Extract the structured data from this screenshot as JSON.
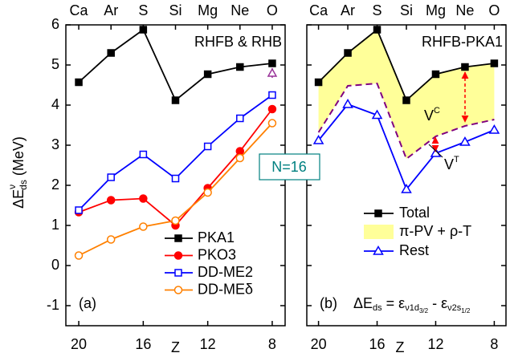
{
  "chart_data": [
    {
      "type": "line",
      "annotation": "RHFB & RHB",
      "panel_label": "(a)",
      "x_label": "Z",
      "y_label": {
        "main": "ΔE",
        "sup": "ν",
        "sub": "ds",
        "unit": "(MeV)"
      },
      "x": [
        20,
        18,
        16,
        14,
        12,
        10,
        8
      ],
      "xlim": [
        20.8,
        7.2
      ],
      "ylim": [
        -1.5,
        6
      ],
      "xticks": [
        20,
        16,
        12,
        8
      ],
      "yticks": [
        -1,
        0,
        1,
        2,
        3,
        4,
        5,
        6
      ],
      "top_ticks": [
        {
          "value": 20,
          "label": "Ca"
        },
        {
          "value": 18,
          "label": "Ar"
        },
        {
          "value": 16,
          "label": "S"
        },
        {
          "value": 14,
          "label": "Si"
        },
        {
          "value": 12,
          "label": "Mg"
        },
        {
          "value": 10,
          "label": "Ne"
        },
        {
          "value": 8,
          "label": "O"
        }
      ],
      "legend": "lower right",
      "series": [
        {
          "name": "PKA1",
          "color": "#000000",
          "marker": "square",
          "filled": true,
          "values": [
            4.57,
            5.3,
            5.88,
            4.12,
            4.77,
            4.95,
            5.04
          ]
        },
        {
          "name": "PKO3",
          "color": "#ff0000",
          "marker": "circle",
          "filled": true,
          "values": [
            1.33,
            1.63,
            1.67,
            1.0,
            1.93,
            2.85,
            3.9
          ]
        },
        {
          "name": "DD-ME2",
          "color": "#0000ff",
          "marker": "square",
          "filled": false,
          "values": [
            1.38,
            2.2,
            2.77,
            2.17,
            2.97,
            3.67,
            4.25
          ]
        },
        {
          "name": "DD-MEδ",
          "color": "#ff8000",
          "marker": "circle",
          "filled": false,
          "values": [
            0.25,
            0.65,
            0.97,
            1.12,
            1.82,
            2.68,
            3.55
          ]
        }
      ],
      "point": {
        "x": 8,
        "value": 4.8,
        "error": 0.12,
        "color": "#993399"
      }
    },
    {
      "type": "line",
      "annotation": "RHFB-PKA1",
      "panel_label": "(b)",
      "x_label": "Z",
      "x": [
        20,
        18,
        16,
        14,
        12,
        10,
        8
      ],
      "xlim": [
        20.8,
        7.2
      ],
      "ylim": [
        -1.5,
        6
      ],
      "xticks": [
        20,
        16,
        12,
        8
      ],
      "yticks": [
        -1,
        0,
        1,
        2,
        3,
        4,
        5,
        6
      ],
      "top_ticks": [
        {
          "value": 20,
          "label": "Ca"
        },
        {
          "value": 18,
          "label": "Ar"
        },
        {
          "value": 16,
          "label": "S"
        },
        {
          "value": 14,
          "label": "Si"
        },
        {
          "value": 12,
          "label": "Mg"
        },
        {
          "value": 10,
          "label": "Ne"
        },
        {
          "value": 8,
          "label": "O"
        }
      ],
      "legend": "lower center",
      "series": [
        {
          "name": "Total",
          "color": "#000000",
          "marker": "square",
          "filled": true,
          "values": [
            4.57,
            5.3,
            5.88,
            4.12,
            4.77,
            4.95,
            5.04
          ]
        },
        {
          "name": "Rest",
          "color": "#0000ff",
          "marker": "triangle",
          "filled": false,
          "values": [
            3.12,
            4.02,
            3.75,
            1.9,
            2.8,
            3.08,
            3.38
          ]
        }
      ],
      "band": {
        "name": "π-PV + ρ-T",
        "color": "#ffff99",
        "line_color": "#800080",
        "values": [
          3.32,
          4.48,
          4.54,
          2.66,
          3.22,
          3.48,
          3.64
        ]
      },
      "arrow_labels": {
        "coulomb": {
          "main": "V",
          "sup": "C"
        },
        "tensor": {
          "main": "V",
          "sup": "T"
        }
      },
      "formula": [
        "ΔE",
        "ds",
        " = ε",
        "ν1d",
        "3/2",
        " - ε",
        "ν2s",
        "1/2"
      ]
    }
  ],
  "center_label": "N=16"
}
